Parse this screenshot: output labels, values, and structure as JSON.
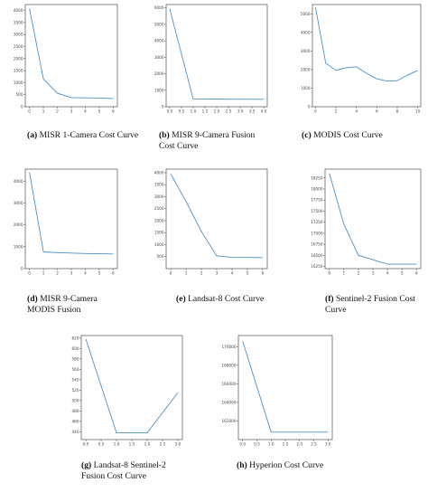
{
  "chart_data": [
    {
      "type": "line",
      "caption_letter": "(a)",
      "caption": "MISR 1-Camera Cost Curve",
      "x": [
        0,
        1,
        2,
        3,
        4,
        5,
        6
      ],
      "values": [
        4080,
        1150,
        560,
        380,
        370,
        360,
        340
      ],
      "xlim": [
        -0.3,
        6.3
      ],
      "ylim": [
        0,
        4250
      ],
      "xticks": [
        "0",
        "1",
        "2",
        "3",
        "4",
        "5",
        "6"
      ],
      "xtick_values": [
        0,
        1,
        2,
        3,
        4,
        5,
        6
      ],
      "yticks": [
        "0",
        "500",
        "1000",
        "1500",
        "2000",
        "2500",
        "3000",
        "3500",
        "4000"
      ],
      "ytick_values": [
        0,
        500,
        1000,
        1500,
        2000,
        2500,
        3000,
        3500,
        4000
      ],
      "color": "#4a90c8"
    },
    {
      "type": "line",
      "caption_letter": "(b)",
      "caption": "MISR 9-Camera Fusion Cost Curve",
      "x": [
        0,
        1,
        2,
        3,
        4
      ],
      "values": [
        5950,
        470,
        460,
        455,
        450
      ],
      "xlim": [
        -0.15,
        4.15
      ],
      "ylim": [
        0,
        6200
      ],
      "xticks": [
        "0.0",
        "0.5",
        "1.0",
        "1.5",
        "2.0",
        "2.5",
        "3.0",
        "3.5",
        "4.0"
      ],
      "xtick_values": [
        0,
        0.5,
        1,
        1.5,
        2,
        2.5,
        3,
        3.5,
        4
      ],
      "yticks": [
        "0",
        "1000",
        "2000",
        "3000",
        "4000",
        "5000",
        "6000"
      ],
      "ytick_values": [
        0,
        1000,
        2000,
        3000,
        4000,
        5000,
        6000
      ],
      "color": "#4a90c8"
    },
    {
      "type": "line",
      "caption_letter": "(c)",
      "caption": "MODIS Cost Curve",
      "x": [
        0,
        1,
        2,
        3,
        4,
        5,
        6,
        7,
        8,
        9,
        10
      ],
      "values": [
        5350,
        2350,
        1950,
        2100,
        2150,
        1800,
        1500,
        1380,
        1400,
        1700,
        1950
      ],
      "xlim": [
        -0.3,
        10.3
      ],
      "ylim": [
        0,
        5500
      ],
      "xticks": [
        "0",
        "2",
        "4",
        "6",
        "8",
        "10"
      ],
      "xtick_values": [
        0,
        2,
        4,
        6,
        8,
        10
      ],
      "yticks": [
        "0",
        "1000",
        "2000",
        "3000",
        "4000",
        "5000"
      ],
      "ytick_values": [
        0,
        1000,
        2000,
        3000,
        4000,
        5000
      ],
      "color": "#4a90c8"
    },
    {
      "type": "line",
      "caption_letter": "(d)",
      "caption": "MISR 9-Camera MODIS Fusion",
      "x": [
        0,
        1,
        2,
        3,
        4,
        5,
        6
      ],
      "values": [
        4400,
        760,
        730,
        710,
        690,
        680,
        670
      ],
      "xlim": [
        -0.3,
        6.3
      ],
      "ylim": [
        0,
        4550
      ],
      "xticks": [
        "0",
        "1",
        "2",
        "3",
        "4",
        "5",
        "6"
      ],
      "xtick_values": [
        0,
        1,
        2,
        3,
        4,
        5,
        6
      ],
      "yticks": [
        "0",
        "1000",
        "2000",
        "3000",
        "4000"
      ],
      "ytick_values": [
        0,
        1000,
        2000,
        3000,
        4000
      ],
      "color": "#4a90c8"
    },
    {
      "type": "line",
      "caption_letter": "(e)",
      "caption": "Landsat-8 Cost Curve",
      "x": [
        0,
        1,
        2,
        3,
        4,
        5,
        6
      ],
      "values": [
        3950,
        2800,
        1550,
        530,
        470,
        465,
        460
      ],
      "xlim": [
        -0.3,
        6.3
      ],
      "ylim": [
        0,
        4150
      ],
      "xticks": [
        "0",
        "1",
        "2",
        "3",
        "4",
        "5",
        "6"
      ],
      "xtick_values": [
        0,
        1,
        2,
        3,
        4,
        5,
        6
      ],
      "yticks": [
        "500",
        "1000",
        "1500",
        "2000",
        "2500",
        "3000",
        "3500",
        "4000"
      ],
      "ytick_values": [
        500,
        1000,
        1500,
        2000,
        2500,
        3000,
        3500,
        4000
      ],
      "color": "#4a90c8"
    },
    {
      "type": "line",
      "caption_letter": "(f)",
      "caption": "Sentinel-2 Fusion Cost Curve",
      "x": [
        0,
        1,
        2,
        3,
        4,
        5,
        6
      ],
      "values": [
        18350,
        17200,
        16500,
        16400,
        16300,
        16300,
        16300
      ],
      "xlim": [
        -0.3,
        6.3
      ],
      "ylim": [
        16200,
        18450
      ],
      "xticks": [
        "0",
        "1",
        "2",
        "3",
        "4",
        "5",
        "6"
      ],
      "xtick_values": [
        0,
        1,
        2,
        3,
        4,
        5,
        6
      ],
      "yticks": [
        "16250",
        "16500",
        "16750",
        "17000",
        "17250",
        "17500",
        "17750",
        "18000",
        "18250"
      ],
      "ytick_values": [
        16250,
        16500,
        16750,
        17000,
        17250,
        17500,
        17750,
        18000,
        18250
      ],
      "color": "#4a90c8"
    },
    {
      "type": "line",
      "caption_letter": "(g)",
      "caption": "Landsat-8 Sentinel-2 Fusion Cost Curve",
      "x": [
        0,
        1,
        2,
        3
      ],
      "values": [
        618,
        438,
        438,
        515
      ],
      "xlim": [
        -0.15,
        3.15
      ],
      "ylim": [
        425,
        625
      ],
      "xticks": [
        "0.0",
        "0.5",
        "1.0",
        "1.5",
        "2.0",
        "2.5",
        "3.0"
      ],
      "xtick_values": [
        0,
        0.5,
        1,
        1.5,
        2,
        2.5,
        3
      ],
      "yticks": [
        "440",
        "460",
        "480",
        "500",
        "520",
        "540",
        "560",
        "580",
        "600",
        "620"
      ],
      "ytick_values": [
        440,
        460,
        480,
        500,
        520,
        540,
        560,
        580,
        600,
        620
      ],
      "color": "#4a90c8"
    },
    {
      "type": "line",
      "caption_letter": "(h)",
      "caption": "Hyperion Cost Curve",
      "x": [
        0,
        1,
        2,
        3
      ],
      "values": [
        170600,
        160800,
        160800,
        160800
      ],
      "xlim": [
        -0.15,
        3.15
      ],
      "ylim": [
        160000,
        171200
      ],
      "xticks": [
        "0.0",
        "0.5",
        "1.0",
        "1.5",
        "2.0",
        "2.5",
        "3.0"
      ],
      "xtick_values": [
        0,
        0.5,
        1,
        1.5,
        2,
        2.5,
        3
      ],
      "yticks": [
        "162000",
        "164000",
        "166000",
        "168000",
        "170000"
      ],
      "ytick_values": [
        162000,
        164000,
        166000,
        168000,
        170000
      ],
      "color": "#4a90c8"
    }
  ]
}
